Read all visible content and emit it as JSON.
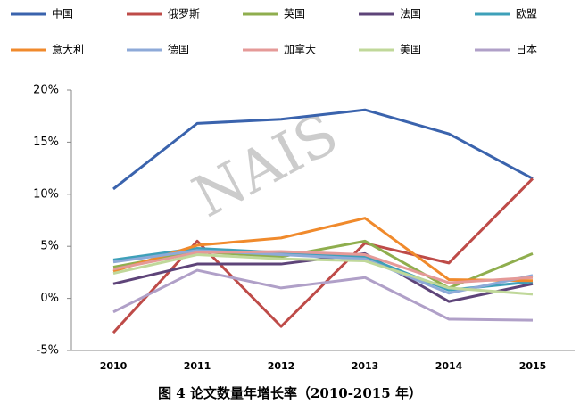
{
  "chart_data": {
    "type": "line",
    "title": "图 4 论文数量年增长率（2010-2015 年）",
    "watermark": "NAIS",
    "categories": [
      "2010",
      "2011",
      "2012",
      "2013",
      "2014",
      "2015"
    ],
    "ylim": [
      -5,
      20
    ],
    "yticks": [
      {
        "value": -5,
        "label": "-5%"
      },
      {
        "value": 0,
        "label": "0%"
      },
      {
        "value": 5,
        "label": "5%"
      },
      {
        "value": 10,
        "label": "10%"
      },
      {
        "value": 15,
        "label": "15%"
      },
      {
        "value": 20,
        "label": "20%"
      }
    ],
    "grid": false,
    "series": [
      {
        "name": "中国",
        "color": "#3a63ad",
        "values": [
          10.5,
          16.8,
          17.2,
          18.1,
          15.8,
          11.5
        ]
      },
      {
        "name": "俄罗斯",
        "color": "#be4b48",
        "values": [
          -3.3,
          5.5,
          -2.7,
          5.3,
          3.4,
          11.5
        ]
      },
      {
        "name": "英国",
        "color": "#8fae4e",
        "values": [
          3.0,
          4.5,
          4.0,
          5.5,
          1.0,
          4.3
        ]
      },
      {
        "name": "法国",
        "color": "#5e4479",
        "values": [
          1.4,
          3.3,
          3.3,
          4.3,
          -0.3,
          1.4
        ]
      },
      {
        "name": "欧盟",
        "color": "#3ea0b9",
        "values": [
          3.7,
          4.8,
          4.4,
          4.0,
          0.8,
          1.6
        ]
      },
      {
        "name": "意大利",
        "color": "#f08a2c",
        "values": [
          2.6,
          5.1,
          5.8,
          7.7,
          1.8,
          1.7
        ]
      },
      {
        "name": "德国",
        "color": "#8eaad8",
        "values": [
          3.5,
          4.6,
          4.2,
          3.8,
          0.5,
          2.2
        ]
      },
      {
        "name": "加拿大",
        "color": "#e59a98",
        "values": [
          2.8,
          4.4,
          4.5,
          4.2,
          1.5,
          2.0
        ]
      },
      {
        "name": "美国",
        "color": "#c0d89a",
        "values": [
          2.4,
          4.2,
          3.8,
          3.6,
          1.0,
          0.4
        ]
      },
      {
        "name": "日本",
        "color": "#b0a0c8",
        "values": [
          -1.3,
          2.7,
          1.0,
          2.0,
          -2.0,
          -2.1
        ]
      }
    ]
  }
}
